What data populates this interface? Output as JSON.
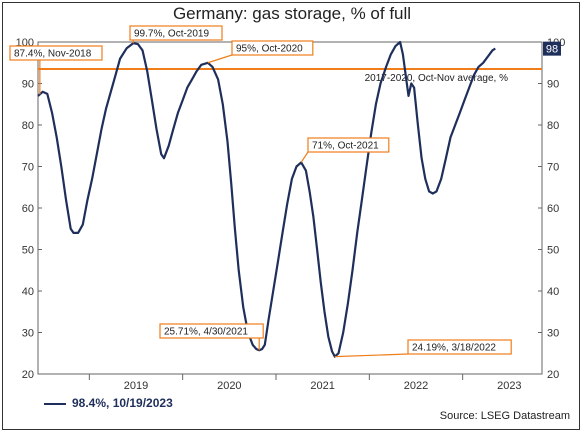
{
  "chart_data": {
    "type": "line",
    "title": "Germany: gas storage, % of full",
    "ylim": [
      20,
      100
    ],
    "yticks": [
      20,
      30,
      40,
      50,
      60,
      70,
      80,
      90,
      100
    ],
    "xlim": [
      2018.45,
      2023.85
    ],
    "x_tick_labels": [
      "2019",
      "2020",
      "2021",
      "2022",
      "2023"
    ],
    "grid": false,
    "legend_position": "bottom-left",
    "legend_label": "98.4%, 10/19/2023",
    "end_value_label": "98",
    "average_line": {
      "value": 93.5,
      "label": "2017-2020, Oct-Nov average, %",
      "color": "#f07d1a"
    },
    "series": [
      {
        "color": "#1f2f5c",
        "points": [
          [
            2018.45,
            87
          ],
          [
            2018.5,
            88
          ],
          [
            2018.55,
            87.5
          ],
          [
            2018.6,
            83
          ],
          [
            2018.65,
            77
          ],
          [
            2018.7,
            70
          ],
          [
            2018.75,
            62
          ],
          [
            2018.8,
            55
          ],
          [
            2018.83,
            54
          ],
          [
            2018.88,
            54
          ],
          [
            2018.93,
            56
          ],
          [
            2018.98,
            62
          ],
          [
            2019.03,
            67
          ],
          [
            2019.08,
            73
          ],
          [
            2019.13,
            79
          ],
          [
            2019.18,
            84
          ],
          [
            2019.23,
            88
          ],
          [
            2019.28,
            92
          ],
          [
            2019.33,
            96
          ],
          [
            2019.4,
            98.5
          ],
          [
            2019.47,
            99.7
          ],
          [
            2019.52,
            99.5
          ],
          [
            2019.57,
            98
          ],
          [
            2019.62,
            93
          ],
          [
            2019.67,
            86
          ],
          [
            2019.72,
            79
          ],
          [
            2019.77,
            73
          ],
          [
            2019.8,
            72
          ],
          [
            2019.85,
            75
          ],
          [
            2019.9,
            79
          ],
          [
            2019.95,
            83
          ],
          [
            2020.0,
            86
          ],
          [
            2020.05,
            89
          ],
          [
            2020.1,
            91
          ],
          [
            2020.15,
            93
          ],
          [
            2020.2,
            94.5
          ],
          [
            2020.27,
            95
          ],
          [
            2020.32,
            94
          ],
          [
            2020.38,
            91
          ],
          [
            2020.43,
            85
          ],
          [
            2020.48,
            76
          ],
          [
            2020.52,
            66
          ],
          [
            2020.56,
            55
          ],
          [
            2020.6,
            45
          ],
          [
            2020.65,
            36
          ],
          [
            2020.7,
            30
          ],
          [
            2020.75,
            27
          ],
          [
            2020.79,
            26
          ],
          [
            2020.82,
            25.71
          ],
          [
            2020.85,
            26
          ],
          [
            2020.88,
            27
          ],
          [
            2020.92,
            33
          ],
          [
            2020.97,
            40
          ],
          [
            2021.02,
            47
          ],
          [
            2021.07,
            54
          ],
          [
            2021.12,
            61
          ],
          [
            2021.17,
            67
          ],
          [
            2021.22,
            70
          ],
          [
            2021.27,
            71
          ],
          [
            2021.32,
            69
          ],
          [
            2021.36,
            64
          ],
          [
            2021.4,
            58
          ],
          [
            2021.44,
            50
          ],
          [
            2021.48,
            42
          ],
          [
            2021.52,
            35
          ],
          [
            2021.56,
            29
          ],
          [
            2021.6,
            25.5
          ],
          [
            2021.63,
            24.19
          ],
          [
            2021.67,
            25
          ],
          [
            2021.72,
            30
          ],
          [
            2021.77,
            37
          ],
          [
            2021.82,
            45
          ],
          [
            2021.87,
            54
          ],
          [
            2021.92,
            62
          ],
          [
            2021.97,
            70
          ],
          [
            2022.02,
            78
          ],
          [
            2022.07,
            85
          ],
          [
            2022.12,
            90
          ],
          [
            2022.18,
            94
          ],
          [
            2022.23,
            97
          ],
          [
            2022.28,
            99
          ],
          [
            2022.33,
            100
          ],
          [
            2022.36,
            97
          ],
          [
            2022.39,
            92
          ],
          [
            2022.42,
            87
          ],
          [
            2022.45,
            90
          ],
          [
            2022.48,
            89
          ],
          [
            2022.52,
            80
          ],
          [
            2022.56,
            72
          ],
          [
            2022.6,
            67
          ],
          [
            2022.64,
            64
          ],
          [
            2022.68,
            63.5
          ],
          [
            2022.72,
            64
          ],
          [
            2022.77,
            67
          ],
          [
            2022.82,
            72
          ],
          [
            2022.87,
            77
          ],
          [
            2022.92,
            80
          ],
          [
            2022.97,
            83
          ],
          [
            2023.02,
            86
          ],
          [
            2023.07,
            89
          ],
          [
            2023.12,
            92
          ],
          [
            2023.17,
            94
          ],
          [
            2023.22,
            95
          ],
          [
            2023.27,
            96.5
          ],
          [
            2023.32,
            98
          ],
          [
            2023.35,
            98.4
          ]
        ]
      }
    ],
    "annotations": [
      {
        "text": "87.4%, Nov-2018",
        "x": 2018.47,
        "y": 87.4
      },
      {
        "text": "99.7%, Oct-2019",
        "x": 2019.47,
        "y": 99.7
      },
      {
        "text": "95%, Oct-2020",
        "x": 2020.27,
        "y": 95
      },
      {
        "text": "71%, Oct-2021",
        "x": 2021.27,
        "y": 71
      },
      {
        "text": "25.71%, 4/30/2021",
        "x": 2020.82,
        "y": 25.71
      },
      {
        "text": "24.19%, 3/18/2022",
        "x": 2021.63,
        "y": 24.19
      }
    ]
  },
  "source": "Source: LSEG Datastream"
}
